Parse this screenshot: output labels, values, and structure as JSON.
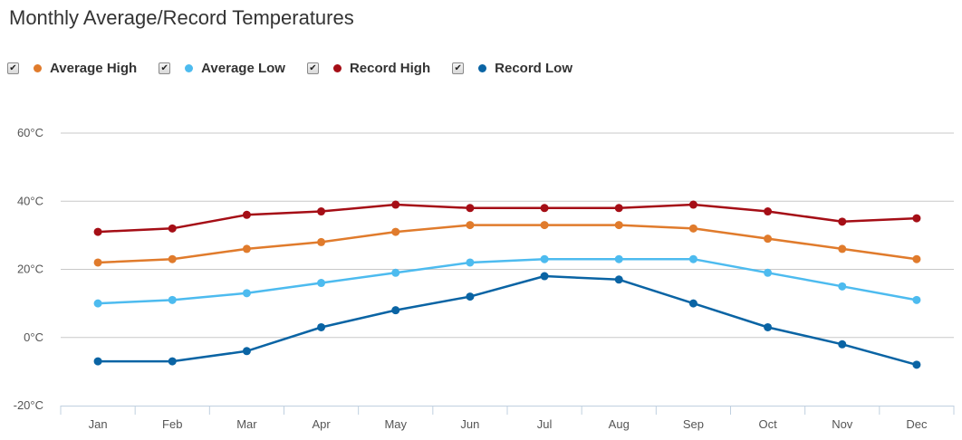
{
  "chart_data": {
    "type": "line",
    "title": "Monthly Average/Record Temperatures",
    "categories": [
      "Jan",
      "Feb",
      "Mar",
      "Apr",
      "May",
      "Jun",
      "Jul",
      "Aug",
      "Sep",
      "Oct",
      "Nov",
      "Dec"
    ],
    "y_ticks": [
      "60°C",
      "40°C",
      "20°C",
      "0°C",
      "-20°C"
    ],
    "y_tick_values": [
      60,
      40,
      20,
      0,
      -20
    ],
    "ylim": [
      -20,
      60
    ],
    "grid": true,
    "legend_position": "top-left",
    "series": [
      {
        "name": "Average High",
        "color": "#e07b2c",
        "checked": true,
        "values": [
          22,
          23,
          26,
          28,
          31,
          33,
          33,
          33,
          32,
          29,
          26,
          23
        ]
      },
      {
        "name": "Average Low",
        "color": "#4dbbef",
        "checked": true,
        "values": [
          10,
          11,
          13,
          16,
          19,
          22,
          23,
          23,
          23,
          19,
          15,
          11
        ]
      },
      {
        "name": "Record High",
        "color": "#a50e16",
        "checked": true,
        "values": [
          31,
          32,
          36,
          37,
          39,
          38,
          38,
          38,
          39,
          37,
          34,
          35
        ]
      },
      {
        "name": "Record Low",
        "color": "#0a64a4",
        "checked": true,
        "values": [
          -7,
          -7,
          -4,
          3,
          8,
          12,
          18,
          17,
          10,
          3,
          -2,
          -8
        ]
      }
    ]
  }
}
